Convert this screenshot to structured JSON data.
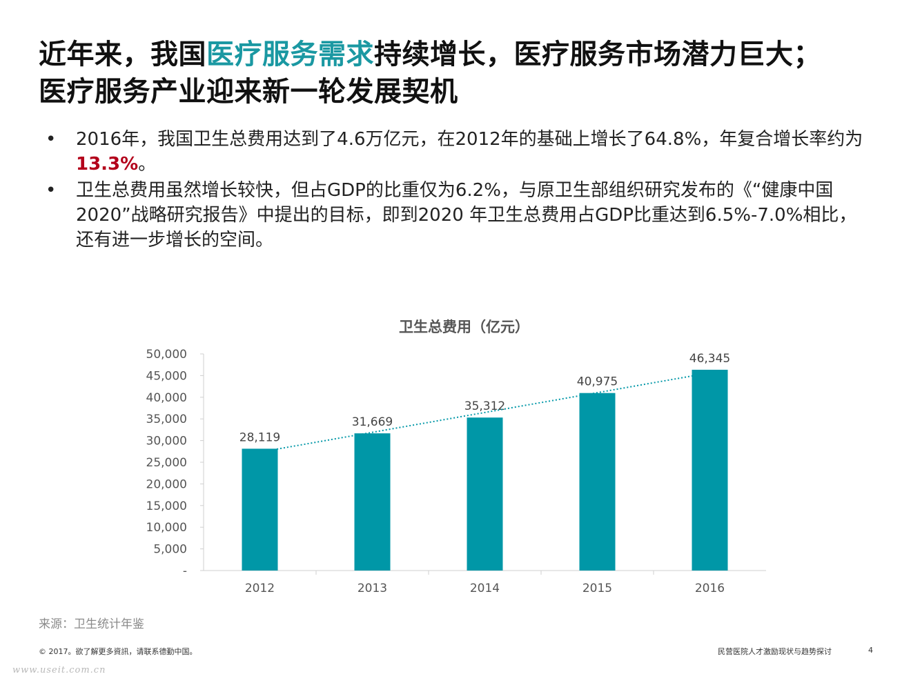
{
  "title": {
    "part1": "近年来，我国",
    "highlight": "医疗服务需求",
    "part2": "持续增长，医疗服务市场潜力巨大；",
    "line2": "医疗服务产业迎来新一轮发展契机"
  },
  "colors": {
    "accent": "#1a98a2",
    "bar": "#0097a7",
    "emphasis": "#b3001b"
  },
  "bullets": [
    {
      "marker": "•",
      "pre": "2016年，我国卫生总费用达到了4.6万亿元，在2012年的基础上增长了64.8%，年复合增长率约为",
      "emph": "13.3%",
      "post": "。"
    },
    {
      "marker": "•",
      "text": "卫生总费用虽然增长较快，但占GDP的比重仅为6.2%，与原卫生部组织研究发布的《“健康中国2020”战略研究报告》中提出的目标，即到2020 年卫生总费用占GDP比重达到6.5%-7.0%相比，还有进一步增长的空间。"
    }
  ],
  "chart_data": {
    "type": "bar",
    "title": "卫生总费用（亿元）",
    "categories": [
      "2012",
      "2013",
      "2014",
      "2015",
      "2016"
    ],
    "values": [
      28119,
      31669,
      35312,
      40975,
      46345
    ],
    "value_labels": [
      "28,119",
      "31,669",
      "35,312",
      "40,975",
      "46,345"
    ],
    "ylim": [
      0,
      50000
    ],
    "yticks": [
      0,
      5000,
      10000,
      15000,
      20000,
      25000,
      30000,
      35000,
      40000,
      45000,
      50000
    ],
    "ytick_labels": [
      "-",
      "5,000",
      "10,000",
      "15,000",
      "20,000",
      "25,000",
      "30,000",
      "35,000",
      "40,000",
      "45,000",
      "50,000"
    ],
    "trendline": "dotted-linear",
    "xlabel": "",
    "ylabel": "",
    "grid": false
  },
  "source": "来源：卫生统计年鉴",
  "footer": {
    "copyright": "© 2017。欲了解更多資訊，请联系德勤中国。",
    "doc_title": "民营医院人才激励现状与趋势探讨",
    "page": "4"
  },
  "watermark": "www.useit.com.cn"
}
